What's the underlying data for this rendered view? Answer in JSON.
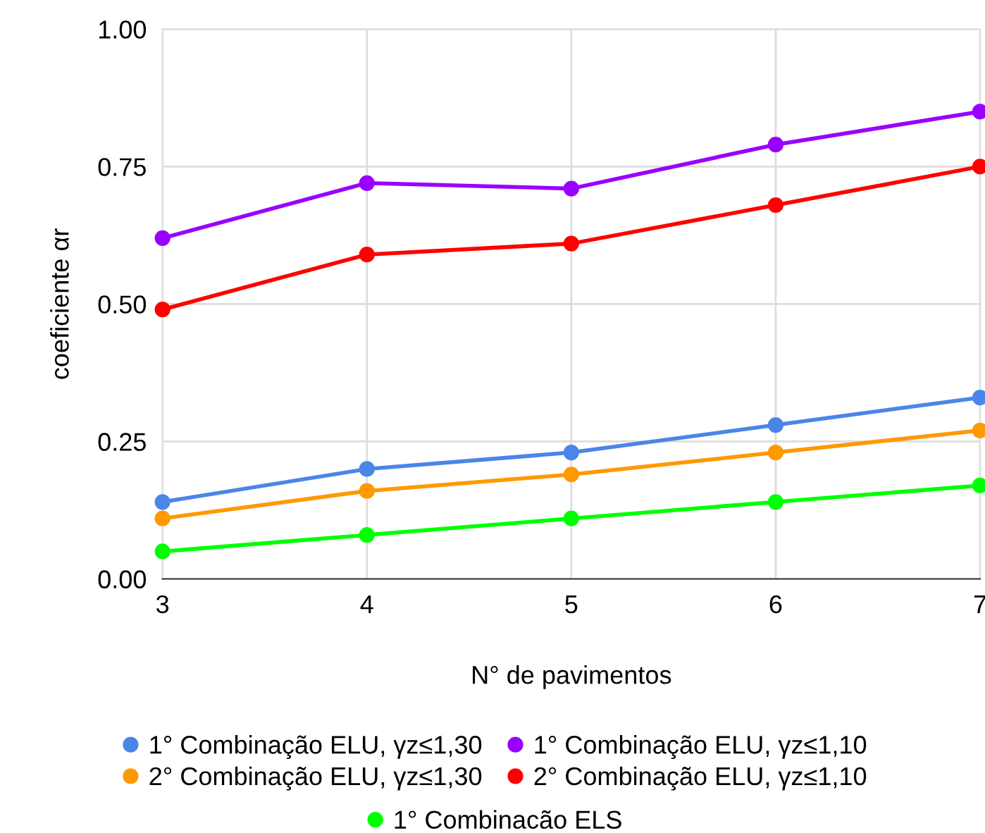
{
  "chart_data": {
    "type": "line",
    "xlabel": "N° de pavimentos",
    "ylabel": "coeficiente αr",
    "x": [
      3,
      4,
      5,
      6,
      7
    ],
    "xlim": [
      3,
      7
    ],
    "xticks": [
      3,
      4,
      5,
      6,
      7
    ],
    "ylim": [
      0,
      1
    ],
    "yticks": [
      {
        "value": 0,
        "label": "0.00"
      },
      {
        "value": 0.25,
        "label": "0.25"
      },
      {
        "value": 0.5,
        "label": "0.50"
      },
      {
        "value": 0.75,
        "label": "0.75"
      },
      {
        "value": 1,
        "label": "1.00"
      }
    ],
    "grid": true,
    "legend": "bottom",
    "marker": "circle",
    "line_style": "solid",
    "series": [
      {
        "name": "1° Combinação ELU, γz≤1,30",
        "color": "#4a86e8",
        "values": [
          0.14,
          0.2,
          0.23,
          0.28,
          0.33
        ]
      },
      {
        "name": "1° Combinação ELU, γz≤1,10",
        "color": "#9900ff",
        "values": [
          0.62,
          0.72,
          0.71,
          0.79,
          0.85
        ]
      },
      {
        "name": "2° Combinação ELU, γz≤1,30",
        "color": "#ff9900",
        "values": [
          0.11,
          0.16,
          0.19,
          0.23,
          0.27
        ]
      },
      {
        "name": "2° Combinação ELU, γz≤1,10",
        "color": "#ff0000",
        "values": [
          0.49,
          0.59,
          0.61,
          0.68,
          0.75
        ]
      },
      {
        "name": "1° Combinacão ELS",
        "color": "#00ff00",
        "values": [
          0.05,
          0.08,
          0.11,
          0.14,
          0.17
        ]
      }
    ]
  }
}
